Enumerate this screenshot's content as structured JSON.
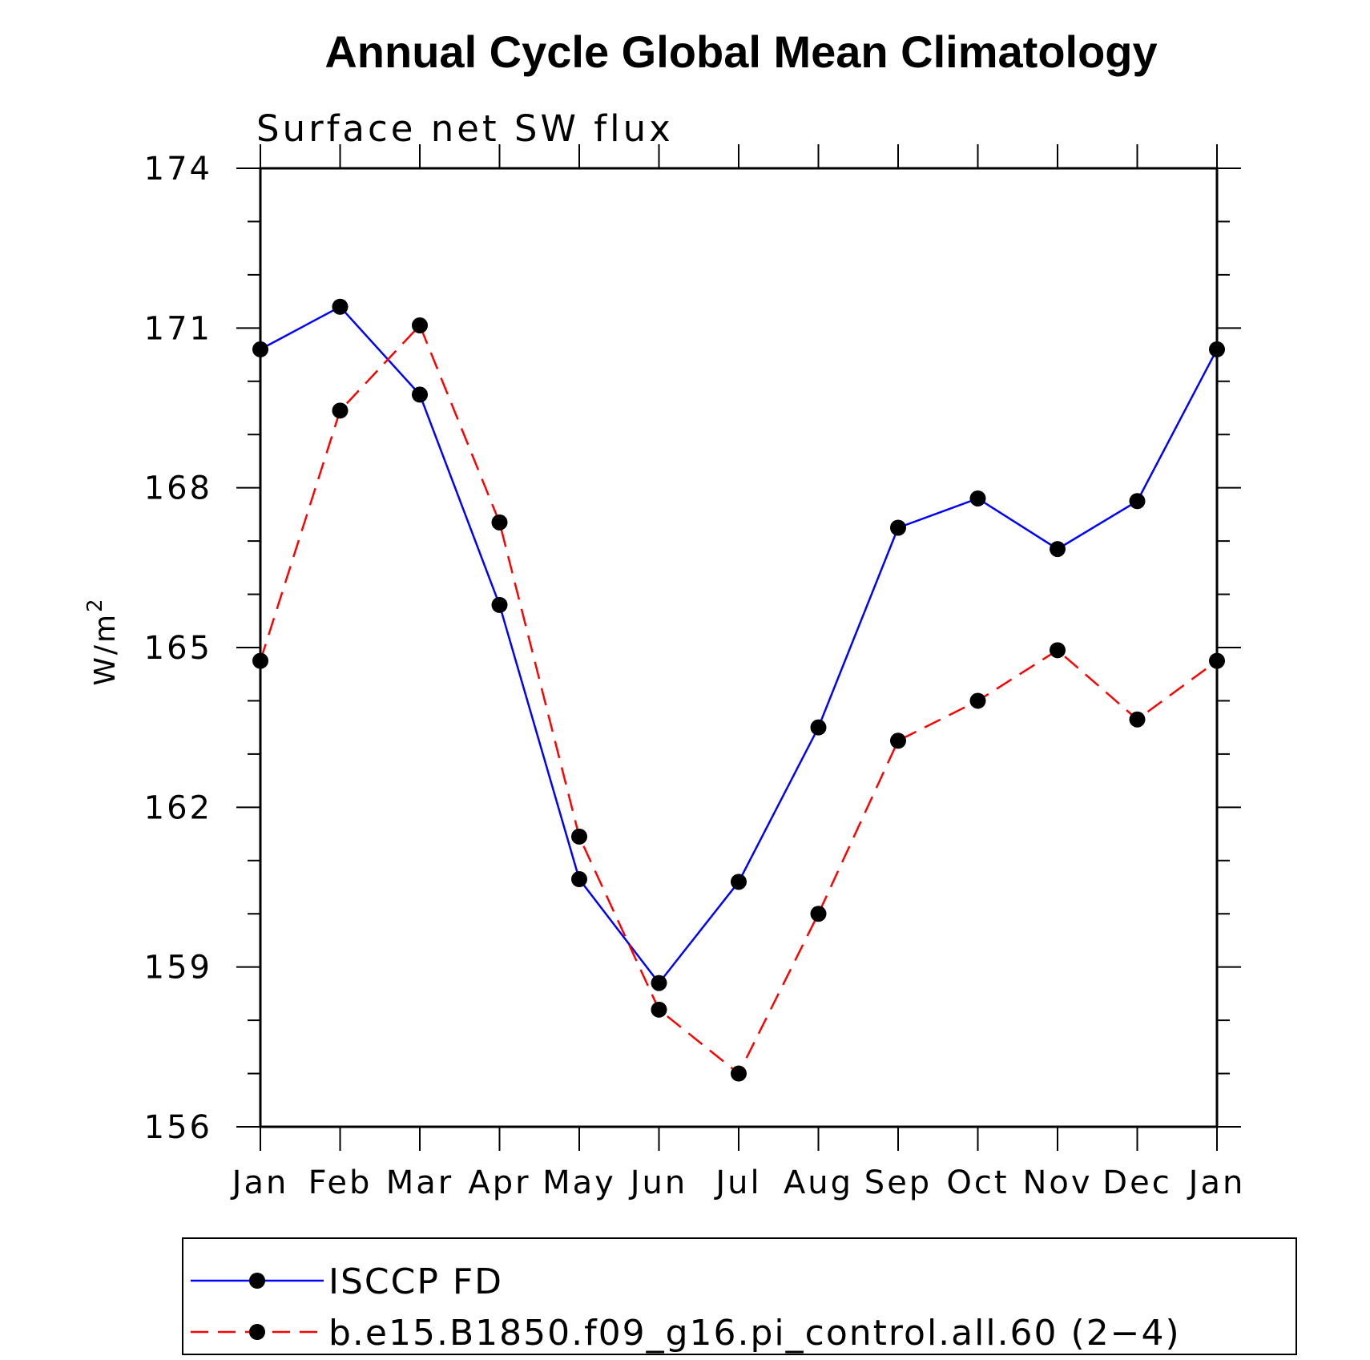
{
  "chart_data": {
    "type": "line",
    "title": "Annual Cycle Global Mean Climatology",
    "subtitle": "Surface net SW flux",
    "ylabel": "W/m",
    "ylabel_superscript": "2",
    "categories": [
      "Jan",
      "Feb",
      "Mar",
      "Apr",
      "May",
      "Jun",
      "Jul",
      "Aug",
      "Sep",
      "Oct",
      "Nov",
      "Dec",
      "Jan"
    ],
    "ylim": [
      156,
      174
    ],
    "yticks": [
      "174",
      "171",
      "168",
      "165",
      "162",
      "159",
      "156"
    ],
    "ytick_values": [
      174,
      171,
      168,
      165,
      162,
      159,
      156
    ],
    "series": [
      {
        "name": "ISCCP FD",
        "color": "#0000ff",
        "dash": "solid",
        "values": [
          170.6,
          171.4,
          169.75,
          165.8,
          160.65,
          158.7,
          160.6,
          163.5,
          167.25,
          167.8,
          166.85,
          167.75,
          170.6
        ]
      },
      {
        "name": "b.e15.B1850.f09_g16.pi_control.all.60 (2−4)",
        "color": "#ff0000",
        "dash": "dashed",
        "values": [
          164.75,
          169.45,
          171.05,
          167.35,
          161.45,
          158.2,
          157.0,
          160.0,
          163.25,
          164.0,
          164.95,
          163.65,
          164.75
        ]
      }
    ],
    "grid": false,
    "legend_position": "bottom"
  }
}
